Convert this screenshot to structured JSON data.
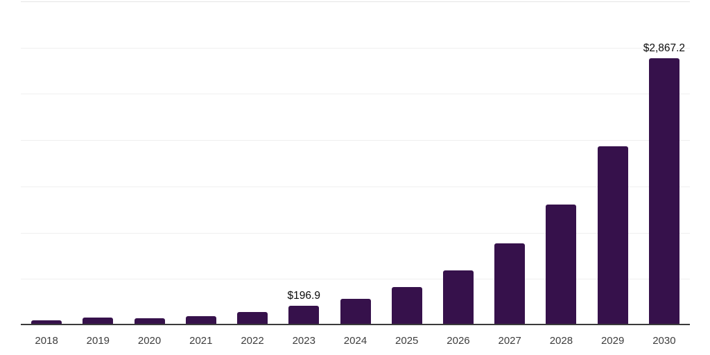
{
  "chart_data": {
    "type": "bar",
    "title": "",
    "xlabel": "",
    "ylabel": "",
    "categories": [
      "2018",
      "2019",
      "2020",
      "2021",
      "2022",
      "2023",
      "2024",
      "2025",
      "2026",
      "2027",
      "2028",
      "2029",
      "2030"
    ],
    "values": [
      41,
      65,
      60,
      86,
      127,
      196.9,
      272,
      400,
      580,
      867,
      1290,
      1921,
      2867.2
    ],
    "value_labels": {
      "2023": "$196.9",
      "2030": "$2,867.2"
    },
    "ylim": [
      0,
      3500
    ],
    "gridline_step": 500,
    "grid": "horizontal",
    "legend": false,
    "colors": {
      "bar": "#36114b",
      "axis": "#3a3a3a",
      "gridline": "#efefef",
      "top_gridline": "#e4e4e4",
      "tick_label": "#3d3d3d",
      "value_label": "#0b0b0b",
      "background": "#ffffff"
    }
  }
}
